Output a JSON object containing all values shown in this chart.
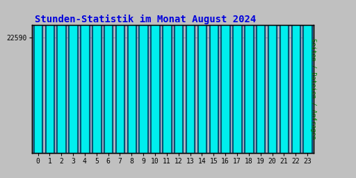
{
  "title": "Stunden-Statistik im Monat August 2024",
  "title_color": "#0000dd",
  "title_fontsize": 10,
  "background_color": "#c0c0c0",
  "plot_bg_color": "#c0c0c0",
  "bar_face_color": "#00eeee",
  "bar_edge_color": "#004488",
  "bar_inner_color": "#006666",
  "ylabel_right": "Seiten / Dateien / Anfragen",
  "ylabel_right_color": "#008800",
  "ytick_label": "22590",
  "ytick_color": "#000000",
  "xtick_color": "#000000",
  "hours": [
    0,
    1,
    2,
    3,
    4,
    5,
    6,
    7,
    8,
    9,
    10,
    11,
    12,
    13,
    14,
    15,
    16,
    17,
    18,
    19,
    20,
    21,
    22,
    23
  ],
  "values": [
    22590,
    22570,
    22570,
    22555,
    22570,
    22562,
    22590,
    22585,
    22570,
    22570,
    22562,
    22560,
    22560,
    22560,
    22558,
    22558,
    22560,
    22555,
    22555,
    22555,
    22558,
    22555,
    22555,
    22580
  ],
  "ylim_min": 22500,
  "ylim_max": 22600,
  "yticks": [
    22590
  ],
  "bar_width": 0.8,
  "outer_border_color": "#000000",
  "figwidth": 5.12,
  "figheight": 2.56,
  "dpi": 100
}
